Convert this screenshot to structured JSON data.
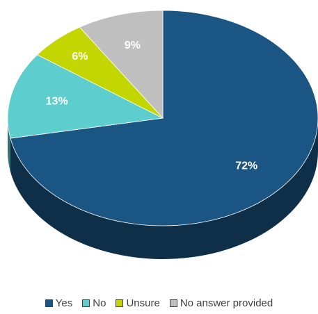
{
  "chart_data": {
    "type": "pie",
    "categories": [
      "Yes",
      "No",
      "Unsure",
      "No answer provided"
    ],
    "values": [
      72,
      13,
      6,
      9
    ],
    "value_labels": [
      "72%",
      "13%",
      "6%",
      "9%"
    ],
    "colors": [
      "#1b5583",
      "#5ecdce",
      "#c4d600",
      "#bfbfbf"
    ],
    "legend": "bottom"
  }
}
